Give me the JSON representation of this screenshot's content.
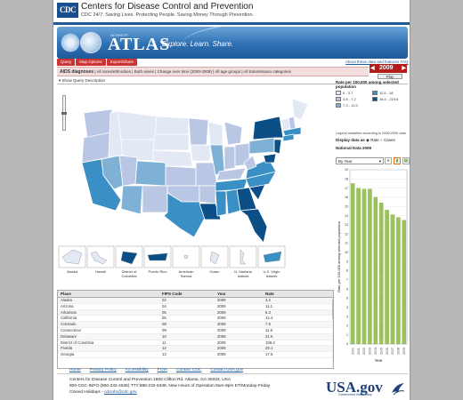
{
  "header": {
    "org_name": "Centers for Disease Control and Prevention",
    "tagline": "CDC 24/7: Saving Lives. Protecting People. Saving Money Through Prevention.",
    "logo_text": "CDC"
  },
  "banner": {
    "small_caption": "NCHHSTP",
    "title": "ATLAS",
    "slogan": "Explore. Learn. Share.",
    "top_links": "About these data and features  FAQ"
  },
  "tabs": [
    "Query",
    "Map Options",
    "Export/Share"
  ],
  "criteria": {
    "label": "AIDS diagnoses",
    "text": "| All races/ethnicities | Both sexes | Change over time (2000-2009) | All age groups | All transmission categories"
  },
  "year_control": {
    "year": "2009",
    "play_label": "Play"
  },
  "show_query": "Show Query Description",
  "legend": {
    "title": "Rate per 100,000 among selected population",
    "items": [
      {
        "label": "0 - 3.7",
        "color": "#e3e8f5"
      },
      {
        "label": "3.8 - 7.2",
        "color": "#b9c6e4"
      },
      {
        "label": "7.3 - 11.5",
        "color": "#7fb1d6"
      },
      {
        "label": "11.5 - 18",
        "color": "#3a8fc4"
      },
      {
        "label": "18.4 - 219.6",
        "color": "#0b4f86"
      }
    ],
    "note": "Legend classified according to 2000-2009 data"
  },
  "display_as": {
    "label": "Display data as",
    "options": [
      "Rate",
      "Cases"
    ],
    "selected": "Rate"
  },
  "national_data": "National Data 2009",
  "by_year": "By Year",
  "territories": [
    "Alaska",
    "Hawaii",
    "District of Columbia",
    "Puerto Rico",
    "American Samoa",
    "Guam",
    "N. Mariana Islands",
    "U.S. Virgin Islands"
  ],
  "table": {
    "columns": [
      "Place",
      "FIPS Code",
      "Year",
      "Rate"
    ],
    "rows": [
      [
        "Alaska",
        "02",
        "2009",
        "3.2"
      ],
      [
        "Arizona",
        "04",
        "2009",
        "11.1"
      ],
      [
        "Arkansas",
        "05",
        "2009",
        "6.3"
      ],
      [
        "California",
        "06",
        "2009",
        "12.4"
      ],
      [
        "Colorado",
        "08",
        "2009",
        "7.5"
      ],
      [
        "Connecticut",
        "09",
        "2009",
        "11.9"
      ],
      [
        "Delaware",
        "10",
        "2009",
        "21.6"
      ],
      [
        "District of Columbia",
        "11",
        "2009",
        "159.2"
      ],
      [
        "Florida",
        "12",
        "2009",
        "28.1"
      ],
      [
        "Georgia",
        "13",
        "2009",
        "17.5"
      ]
    ]
  },
  "chart_data": {
    "type": "bar",
    "categories": [
      "2000",
      "2001",
      "2002",
      "2003",
      "2004",
      "2005",
      "2006",
      "2007",
      "2008",
      "2009"
    ],
    "values": [
      17.5,
      17.0,
      16.9,
      16.9,
      16.0,
      15.4,
      14.6,
      14.1,
      13.8,
      13.5
    ],
    "ylabel": "Rate per 100,000 among selected population",
    "xlabel": "Year",
    "ylim": [
      0,
      19
    ],
    "yticks": [
      0,
      1,
      2,
      3,
      4,
      5,
      6,
      7,
      8,
      9,
      10,
      11,
      12,
      13,
      14,
      15,
      16,
      17,
      18,
      19
    ],
    "bar_color": "#9bc35a"
  },
  "footer": {
    "links": [
      "Home",
      "Privacy Policy",
      "Accessibility",
      "FOIA",
      "Contact CDC",
      "Contact USA.gov"
    ],
    "address": "Centers for Disease Control and Prevention 1600 Clifton Rd. Atlanta, GA 30333, USA",
    "phone": "800-CDC-INFO (800-232-4636) TTY:888-232-6348, New Hours of Operation 8am-8pm ET/Monday-Friday",
    "closed": "Closed Holidays - ",
    "email": "cdcinfo@cdc.gov",
    "usagov": "USA.gov",
    "usagov_sub": "Government Made Easy"
  }
}
